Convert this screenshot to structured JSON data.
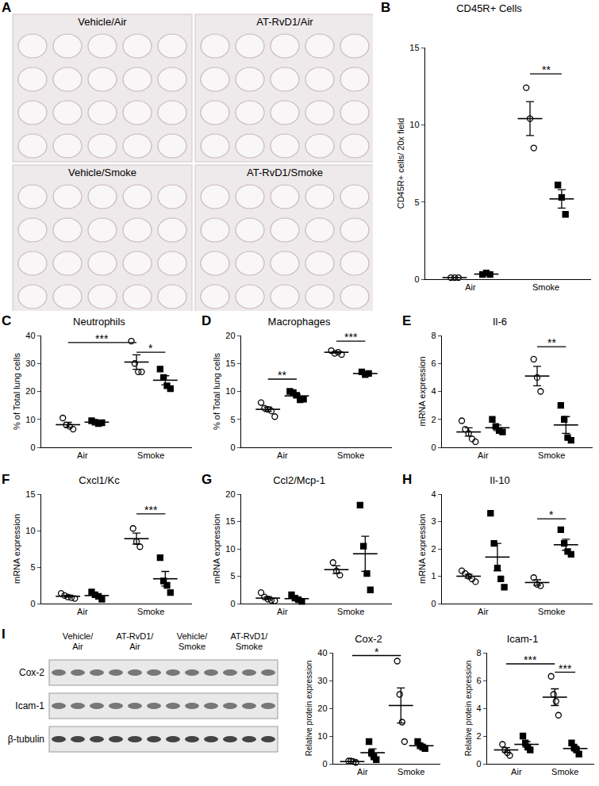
{
  "figure": {
    "images": {
      "panel": "A",
      "labels": [
        "Vehicle/Air",
        "AT-RvD1/Air",
        "Vehicle/Smoke",
        "AT-RvD1/Smoke"
      ]
    },
    "blot": {
      "panel": "I",
      "lanes": [
        "Vehicle/Air",
        "AT-RvD1/Air",
        "Vehicle/Smoke",
        "AT-RvD1/Smoke"
      ],
      "rows": [
        "Cox-2",
        "Icam-1",
        "β-tubulin"
      ]
    }
  },
  "chart_data": [
    {
      "type": "scatter",
      "panel": "B",
      "title": "CD45R+ Cells",
      "y_label": "CD45R+ cells/ 20x field",
      "categories": [
        "Air",
        "Smoke"
      ],
      "ylim": [
        0,
        15
      ],
      "yticks": [
        0,
        5,
        10,
        15
      ],
      "series": [
        {
          "marker": "circle-open",
          "color": "#000000",
          "values": [
            [
              0.1,
              0.1,
              0.1
            ],
            [
              12.4,
              10.4,
              8.5
            ]
          ],
          "mean": [
            0.1,
            10.4
          ],
          "error": [
            0,
            1.1
          ]
        },
        {
          "marker": "square",
          "color": "#000000",
          "values": [
            [
              0.3,
              0.4,
              0.3
            ],
            [
              6.1,
              5.3,
              4.2
            ]
          ],
          "mean": [
            0.33,
            5.2
          ],
          "error": [
            0.05,
            0.6
          ]
        }
      ],
      "annotations": [
        {
          "text": "**",
          "start": [
            1,
            0
          ],
          "end": [
            1,
            1
          ],
          "y": 13.3
        }
      ]
    },
    {
      "type": "scatter",
      "panel": "C",
      "title": "Neutrophils",
      "y_label": "% of Total lung cells",
      "categories": [
        "Air",
        "Smoke"
      ],
      "ylim": [
        0,
        40
      ],
      "yticks": [
        0,
        10,
        20,
        30,
        40
      ],
      "series": [
        {
          "marker": "circle-open",
          "color": "#000000",
          "values": [
            [
              10.5,
              8,
              7.5,
              6.5
            ],
            [
              38,
              30,
              27,
              27
            ]
          ],
          "mean": [
            8.1,
            30.5
          ],
          "error": [
            0.9,
            2.6
          ]
        },
        {
          "marker": "square",
          "color": "#000000",
          "values": [
            [
              9.5,
              9,
              8.5,
              8.8
            ],
            [
              28,
              25,
              22,
              21
            ]
          ],
          "mean": [
            9,
            24
          ],
          "error": [
            0.2,
            1.6
          ]
        }
      ],
      "annotations": [
        {
          "text": "***",
          "start": [
            0,
            0
          ],
          "end": [
            1,
            0
          ],
          "y": 37.5
        },
        {
          "text": "*",
          "start": [
            1,
            0
          ],
          "end": [
            1,
            1
          ],
          "y": 34
        }
      ]
    },
    {
      "type": "scatter",
      "panel": "D",
      "title": "Macrophages",
      "y_label": "% of Total lung cells",
      "categories": [
        "Air",
        "Smoke"
      ],
      "ylim": [
        0,
        20
      ],
      "yticks": [
        0,
        5,
        10,
        15,
        20
      ],
      "series": [
        {
          "marker": "circle-open",
          "color": "#000000",
          "values": [
            [
              8,
              7,
              6.8,
              6.5,
              5.5
            ],
            [
              17.3,
              16.8,
              17,
              16.6
            ]
          ],
          "mean": [
            6.8,
            17
          ],
          "error": [
            0.4,
            0.15
          ]
        },
        {
          "marker": "square",
          "color": "#000000",
          "values": [
            [
              10,
              9.8,
              9.3,
              8.5,
              8.6
            ],
            [
              13.5,
              13,
              13.2
            ]
          ],
          "mean": [
            9.2,
            13.2
          ],
          "error": [
            0.3,
            0.15
          ]
        }
      ],
      "annotations": [
        {
          "text": "**",
          "start": [
            0,
            0
          ],
          "end": [
            0,
            1
          ],
          "y": 12.2
        },
        {
          "text": "***",
          "start": [
            1,
            0
          ],
          "end": [
            1,
            1
          ],
          "y": 19
        }
      ]
    },
    {
      "type": "scatter",
      "panel": "E",
      "title": "Il-6",
      "y_label": "mRNA expression",
      "categories": [
        "Air",
        "Smoke"
      ],
      "ylim": [
        0,
        8
      ],
      "yticks": [
        0,
        2,
        4,
        6,
        8
      ],
      "series": [
        {
          "marker": "circle-open",
          "color": "#000000",
          "values": [
            [
              1.9,
              1.3,
              1,
              0.6,
              0.4
            ],
            [
              6.3,
              5,
              4
            ]
          ],
          "mean": [
            1.1,
            5.1
          ],
          "error": [
            0.3,
            0.7
          ]
        },
        {
          "marker": "square",
          "color": "#000000",
          "values": [
            [
              2,
              1.5,
              1.2,
              1.1
            ],
            [
              3,
              2,
              0.7,
              0.5
            ]
          ],
          "mean": [
            1.4,
            1.6
          ],
          "error": [
            0.2,
            0.6
          ]
        }
      ],
      "annotations": [
        {
          "text": "**",
          "start": [
            1,
            0
          ],
          "end": [
            1,
            1
          ],
          "y": 7.2
        }
      ]
    },
    {
      "type": "scatter",
      "panel": "F",
      "title": "Cxcl1/Kc",
      "y_label": "mRNA expression",
      "categories": [
        "Air",
        "Smoke"
      ],
      "ylim": [
        0,
        15
      ],
      "yticks": [
        0,
        5,
        10,
        15
      ],
      "series": [
        {
          "marker": "circle-open",
          "color": "#000000",
          "values": [
            [
              1.4,
              1.1,
              0.9,
              0.8,
              0.7
            ],
            [
              10.3,
              8.5,
              7.8
            ]
          ],
          "mean": [
            1,
            8.9
          ],
          "error": [
            0.12,
            0.75
          ]
        },
        {
          "marker": "square",
          "color": "#000000",
          "values": [
            [
              1.6,
              1.2,
              1,
              0.6
            ],
            [
              6.3,
              3.1,
              2.5,
              1.5
            ]
          ],
          "mean": [
            1.1,
            3.4
          ],
          "error": [
            0.2,
            1
          ]
        }
      ],
      "annotations": [
        {
          "text": "***",
          "start": [
            1,
            0
          ],
          "end": [
            1,
            1
          ],
          "y": 12.3
        }
      ]
    },
    {
      "type": "scatter",
      "panel": "G",
      "title": "Ccl2/Mcp-1",
      "y_label": "mRNA expression",
      "categories": [
        "Air",
        "Smoke"
      ],
      "ylim": [
        0,
        20
      ],
      "yticks": [
        0,
        5,
        10,
        15,
        20
      ],
      "series": [
        {
          "marker": "circle-open",
          "color": "#000000",
          "values": [
            [
              2,
              1.2,
              0.8,
              0.6,
              0.5
            ],
            [
              7.5,
              6,
              5.2
            ]
          ],
          "mean": [
            1,
            6.2
          ],
          "error": [
            0.3,
            0.7
          ]
        },
        {
          "marker": "square",
          "color": "#000000",
          "values": [
            [
              1.6,
              1,
              0.7,
              0.4
            ],
            [
              18,
              10.5,
              5.5,
              2.5
            ]
          ],
          "mean": [
            0.9,
            9.1
          ],
          "error": [
            0.25,
            3.2
          ]
        }
      ],
      "annotations": []
    },
    {
      "type": "scatter",
      "panel": "H",
      "title": "Il-10",
      "y_label": "mRNA expression",
      "categories": [
        "Air",
        "Smoke"
      ],
      "ylim": [
        0,
        4
      ],
      "yticks": [
        0,
        1,
        2,
        3,
        4
      ],
      "series": [
        {
          "marker": "circle-open",
          "color": "#000000",
          "values": [
            [
              1.2,
              1.1,
              1,
              0.9,
              0.8
            ],
            [
              0.95,
              0.7,
              0.65
            ]
          ],
          "mean": [
            1,
            0.77
          ],
          "error": [
            0.07,
            0.1
          ]
        },
        {
          "marker": "square",
          "color": "#000000",
          "values": [
            [
              3.3,
              2.2,
              1.3,
              0.9,
              0.6
            ],
            [
              2.7,
              2.2,
              1.9,
              1.8
            ]
          ],
          "mean": [
            1.7,
            2.15
          ],
          "error": [
            0.5,
            0.2
          ]
        }
      ],
      "annotations": [
        {
          "text": "*",
          "start": [
            1,
            0
          ],
          "end": [
            1,
            1
          ],
          "y": 3.1
        }
      ]
    },
    {
      "type": "scatter",
      "title": "Cox-2",
      "y_label": "Relative protein expression",
      "categories": [
        "Air",
        "Smoke"
      ],
      "ylim": [
        0,
        40
      ],
      "yticks": [
        0,
        10,
        20,
        30,
        40
      ],
      "series": [
        {
          "marker": "circle-open",
          "color": "#000000",
          "values": [
            [
              1,
              1,
              0.8,
              0.5
            ],
            [
              37,
              25,
              15,
              8
            ]
          ],
          "mean": [
            0.8,
            21
          ],
          "error": [
            0.1,
            6.3
          ]
        },
        {
          "marker": "square",
          "color": "#000000",
          "values": [
            [
              8,
              4,
              2.5,
              1.5
            ],
            [
              8,
              6.5,
              6,
              5.5
            ]
          ],
          "mean": [
            4,
            6.5
          ],
          "error": [
            1.4,
            0.5
          ]
        }
      ],
      "annotations": [
        {
          "text": "*",
          "start": [
            0,
            0
          ],
          "end": [
            1,
            0
          ],
          "y": 39
        }
      ]
    },
    {
      "type": "scatter",
      "title": "Icam-1",
      "y_label": "Relative protein expression",
      "categories": [
        "Air",
        "Smoke"
      ],
      "ylim": [
        0,
        8
      ],
      "yticks": [
        0,
        2,
        4,
        6,
        8
      ],
      "series": [
        {
          "marker": "circle-open",
          "color": "#000000",
          "values": [
            [
              1.4,
              1,
              0.8,
              0.6
            ],
            [
              6.3,
              5,
              4.5,
              3.5
            ]
          ],
          "mean": [
            1,
            4.8
          ],
          "error": [
            0.17,
            0.6
          ]
        },
        {
          "marker": "square",
          "color": "#000000",
          "values": [
            [
              2,
              1.5,
              1.2,
              1
            ],
            [
              1.5,
              1.2,
              1,
              0.7
            ]
          ],
          "mean": [
            1.4,
            1.1
          ],
          "error": [
            0.2,
            0.17
          ]
        }
      ],
      "annotations": [
        {
          "text": "***",
          "start": [
            0,
            0
          ],
          "end": [
            1,
            0
          ],
          "y": 7.2
        },
        {
          "text": "***",
          "start": [
            1,
            0
          ],
          "end": [
            1,
            1
          ],
          "y": 6.6
        }
      ]
    }
  ]
}
